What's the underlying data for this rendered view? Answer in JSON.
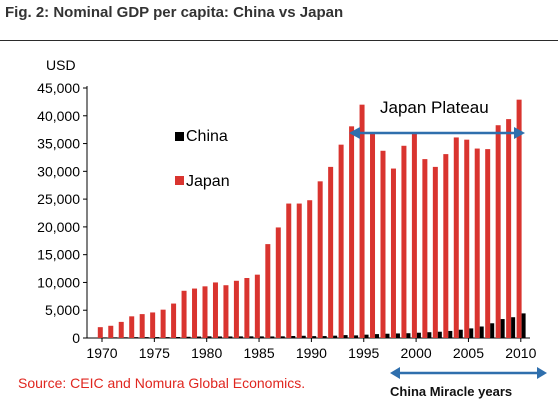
{
  "figure": {
    "title": "Fig. 2: Nominal GDP per capita: China vs Japan",
    "source": "Source: CEIC and Nomura Global Economics."
  },
  "chart_data": {
    "type": "bar",
    "title": "Fig. 2: Nominal GDP per capita: China vs Japan",
    "ylabel": "USD",
    "xlabel": "",
    "ylim": [
      0,
      45000
    ],
    "yticks": [
      0,
      5000,
      10000,
      15000,
      20000,
      25000,
      30000,
      35000,
      40000,
      45000
    ],
    "ytick_labels": [
      "0",
      "5,000",
      "10,000",
      "15,000",
      "20,000",
      "25,000",
      "30,000",
      "35,000",
      "40,000",
      "45,000"
    ],
    "xtick_labels": [
      "1970",
      "1975",
      "1980",
      "1985",
      "1990",
      "1995",
      "2000",
      "2005",
      "2010"
    ],
    "categories": [
      1970,
      1971,
      1972,
      1973,
      1974,
      1975,
      1976,
      1977,
      1978,
      1979,
      1980,
      1981,
      1982,
      1983,
      1984,
      1985,
      1986,
      1987,
      1988,
      1989,
      1990,
      1991,
      1992,
      1993,
      1994,
      1995,
      1996,
      1997,
      1998,
      1999,
      2000,
      2001,
      2002,
      2003,
      2004,
      2005,
      2006,
      2007,
      2008,
      2009,
      2010
    ],
    "series": [
      {
        "name": "China",
        "color": "#000000",
        "values": [
          110,
          120,
          130,
          150,
          160,
          170,
          160,
          180,
          220,
          260,
          300,
          280,
          280,
          290,
          300,
          290,
          280,
          300,
          360,
          400,
          340,
          350,
          420,
          520,
          470,
          600,
          700,
          770,
          820,
          860,
          950,
          1040,
          1130,
          1270,
          1490,
          1730,
          2070,
          2650,
          3410,
          3740,
          4430
        ]
      },
      {
        "name": "Japan",
        "color": "#d9342f",
        "values": [
          1950,
          2200,
          2900,
          3900,
          4300,
          4600,
          5100,
          6200,
          8500,
          8900,
          9300,
          10000,
          9500,
          10300,
          10800,
          11400,
          16900,
          19900,
          24200,
          24200,
          24800,
          28200,
          30800,
          34800,
          38100,
          42000,
          37000,
          33700,
          30500,
          34600,
          36800,
          32200,
          30800,
          33100,
          36100,
          35700,
          34100,
          34000,
          38300,
          39400,
          42900
        ]
      }
    ],
    "annotations": [
      {
        "text": "Japan Plateau",
        "type": "double-arrow",
        "from": 1994,
        "to": 2010,
        "color": "#2f6fad"
      },
      {
        "text": "China Miracle years",
        "type": "double-arrow",
        "from": 2000,
        "to": 2010,
        "color": "#2f6fad"
      }
    ],
    "legend_position": "upper-left",
    "grid": false
  }
}
